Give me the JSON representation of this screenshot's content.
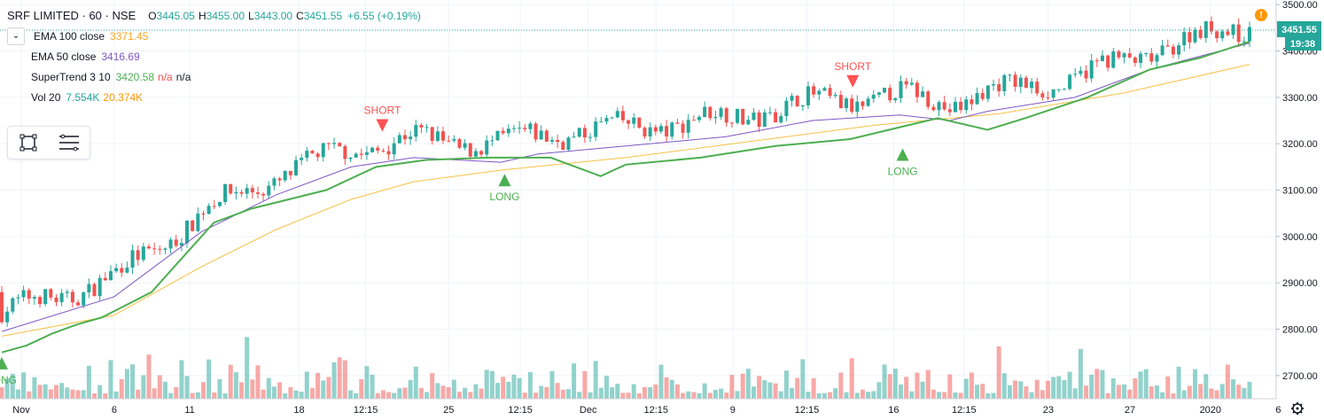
{
  "header": {
    "symbol": "SRF LIMITED · 60 · NSE",
    "open": "3445.05",
    "high": "3455.00",
    "low": "3443.00",
    "close": "3451.55",
    "change": "+6.55 (+0.19%)"
  },
  "indicators": [
    {
      "name": "EMA 100 close",
      "values": [
        "3371.45"
      ],
      "colors": [
        "#f6a623"
      ]
    },
    {
      "name": "EMA 50 close",
      "values": [
        "3416.69"
      ],
      "colors": [
        "#7e57c2"
      ]
    },
    {
      "name": "SuperTrend 3 10",
      "values": [
        "3420.58",
        "n/a",
        "n/a"
      ],
      "colors": [
        "#4caf50",
        "#ef5350",
        "#131722"
      ]
    },
    {
      "name": "Vol 20",
      "values": [
        "7.554K",
        "20.374K"
      ],
      "colors": [
        "#26a69a",
        "#ff9800"
      ]
    }
  ],
  "price_badge": {
    "value": "3451.55",
    "countdown": "19:38"
  },
  "toolbar": {
    "items": [
      "rectangle-tool-icon",
      "lines-tool-icon"
    ]
  },
  "colors": {
    "up": "#26a69a",
    "down": "#ef5350",
    "ema100": "#f6c244",
    "ema50": "#7e57c2",
    "supertrend_up": "#4caf50",
    "supertrend_down": "#ff5252",
    "axis_text": "#131722"
  },
  "chart_data": {
    "type": "candlestick",
    "y_axis": {
      "range": [
        2650,
        3510
      ],
      "ticks": [
        2700,
        2800,
        2900,
        3000,
        3100,
        3200,
        3300,
        3400,
        3500
      ],
      "tick_labels": [
        "2700.00",
        "2800.00",
        "2900.00",
        "3000.00",
        "3100.00",
        "3200.00",
        "3300.00",
        "3400.00",
        "3500.00"
      ]
    },
    "x_axis": {
      "tick_labels": [
        "Nov",
        "6",
        "11",
        "18",
        "12:15",
        "25",
        "12:15",
        "Dec",
        "12:15",
        "9",
        "12:15",
        "16",
        "12:15",
        "23",
        "27",
        "2020",
        "6"
      ],
      "tick_positions": [
        0.0,
        0.074,
        0.134,
        0.221,
        0.274,
        0.34,
        0.397,
        0.451,
        0.505,
        0.566,
        0.625,
        0.694,
        0.75,
        0.817,
        0.882,
        0.946,
        1.0
      ]
    },
    "series": [
      {
        "name": "EMA 100 close",
        "points": [
          [
            0,
            2785
          ],
          [
            0.09,
            2830
          ],
          [
            0.16,
            2935
          ],
          [
            0.22,
            3015
          ],
          [
            0.28,
            3080
          ],
          [
            0.33,
            3118
          ],
          [
            0.4,
            3143
          ],
          [
            0.5,
            3170
          ],
          [
            0.6,
            3205
          ],
          [
            0.7,
            3240
          ],
          [
            0.8,
            3265
          ],
          [
            0.9,
            3310
          ],
          [
            1.0,
            3371
          ]
        ]
      },
      {
        "name": "EMA 50 close",
        "points": [
          [
            0,
            2795
          ],
          [
            0.09,
            2870
          ],
          [
            0.16,
            3010
          ],
          [
            0.22,
            3090
          ],
          [
            0.28,
            3150
          ],
          [
            0.33,
            3170
          ],
          [
            0.4,
            3160
          ],
          [
            0.43,
            3178
          ],
          [
            0.5,
            3195
          ],
          [
            0.58,
            3215
          ],
          [
            0.65,
            3250
          ],
          [
            0.72,
            3262
          ],
          [
            0.76,
            3250
          ],
          [
            0.79,
            3270
          ],
          [
            0.86,
            3300
          ],
          [
            0.92,
            3360
          ],
          [
            1.0,
            3417
          ]
        ]
      },
      {
        "name": "SuperTrend 3 10",
        "points": [
          [
            0,
            2750
          ],
          [
            0.02,
            2765
          ],
          [
            0.04,
            2790
          ],
          [
            0.06,
            2810
          ],
          [
            0.08,
            2825
          ],
          [
            0.12,
            2880
          ],
          [
            0.14,
            2940
          ],
          [
            0.17,
            3030
          ],
          [
            0.2,
            3060
          ],
          [
            0.26,
            3100
          ],
          [
            0.3,
            3150
          ],
          [
            0.34,
            3165
          ],
          [
            0.39,
            3170
          ],
          [
            0.44,
            3170
          ],
          [
            0.48,
            3130
          ],
          [
            0.5,
            3155
          ],
          [
            0.56,
            3170
          ],
          [
            0.62,
            3195
          ],
          [
            0.68,
            3210
          ],
          [
            0.75,
            3255
          ],
          [
            0.79,
            3230
          ],
          [
            0.82,
            3255
          ],
          [
            0.87,
            3300
          ],
          [
            0.92,
            3360
          ],
          [
            0.96,
            3385
          ],
          [
            1.0,
            3420
          ]
        ]
      }
    ],
    "signals": [
      {
        "label": "SHORT",
        "x": 0.305,
        "y": 3230
      },
      {
        "label": "LONG",
        "x": 0.403,
        "y": 3135
      },
      {
        "label": "SHORT",
        "x": 0.682,
        "y": 3325
      },
      {
        "label": "LONG",
        "x": 0.722,
        "y": 3190
      },
      {
        "label": "LONG",
        "x": 0.0,
        "y": 2740
      }
    ],
    "last_price": 3451.55,
    "ylabel": "",
    "xlabel": "",
    "title": ""
  }
}
